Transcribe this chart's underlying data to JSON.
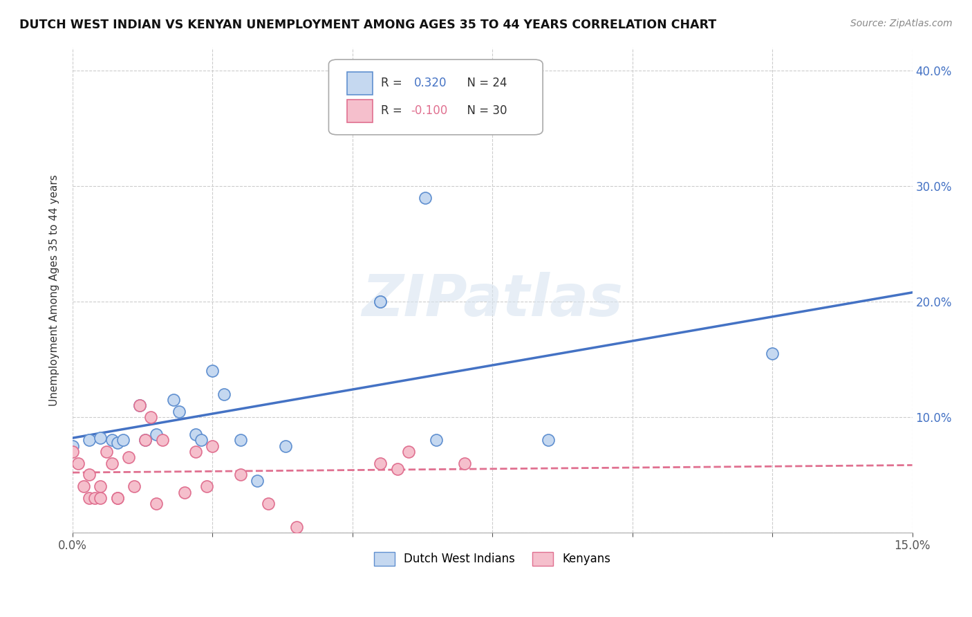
{
  "title": "DUTCH WEST INDIAN VS KENYAN UNEMPLOYMENT AMONG AGES 35 TO 44 YEARS CORRELATION CHART",
  "source": "Source: ZipAtlas.com",
  "ylabel": "Unemployment Among Ages 35 to 44 years",
  "watermark": "ZIPatlas",
  "xlim": [
    0,
    0.15
  ],
  "ylim": [
    0,
    0.42
  ],
  "xticks": [
    0.0,
    0.025,
    0.05,
    0.075,
    0.1,
    0.125,
    0.15
  ],
  "xtick_labels_show": [
    "0.0%",
    "",
    "",
    "",
    "",
    "",
    "15.0%"
  ],
  "yticks_right": [
    0.1,
    0.2,
    0.3,
    0.4
  ],
  "ytick_labels_right": [
    "10.0%",
    "20.0%",
    "30.0%",
    "40.0%"
  ],
  "legend1_label": "Dutch West Indians",
  "legend2_label": "Kenyans",
  "R1": 0.32,
  "N1": 24,
  "R2": -0.1,
  "N2": 30,
  "color1": "#c5d8f0",
  "color2": "#f5bfcc",
  "edge_color1": "#6090d0",
  "edge_color2": "#e07090",
  "line_color1": "#4472c4",
  "line_color2": "#e07090",
  "background_color": "#ffffff",
  "grid_color": "#cccccc",
  "dutch_x": [
    0.0,
    0.003,
    0.005,
    0.007,
    0.008,
    0.009,
    0.012,
    0.013,
    0.015,
    0.018,
    0.019,
    0.022,
    0.023,
    0.025,
    0.027,
    0.03,
    0.033,
    0.038,
    0.055,
    0.055,
    0.063,
    0.065,
    0.085,
    0.125
  ],
  "dutch_y": [
    0.075,
    0.08,
    0.082,
    0.08,
    0.078,
    0.08,
    0.11,
    0.08,
    0.085,
    0.115,
    0.105,
    0.085,
    0.08,
    0.14,
    0.12,
    0.08,
    0.045,
    0.075,
    0.2,
    0.2,
    0.29,
    0.08,
    0.08,
    0.155
  ],
  "kenyan_x": [
    0.0,
    0.001,
    0.002,
    0.003,
    0.003,
    0.004,
    0.005,
    0.005,
    0.006,
    0.007,
    0.008,
    0.008,
    0.01,
    0.011,
    0.012,
    0.013,
    0.014,
    0.015,
    0.016,
    0.02,
    0.022,
    0.024,
    0.025,
    0.03,
    0.035,
    0.04,
    0.055,
    0.058,
    0.06,
    0.07
  ],
  "kenyan_y": [
    0.07,
    0.06,
    0.04,
    0.03,
    0.05,
    0.03,
    0.04,
    0.03,
    0.07,
    0.06,
    0.03,
    0.03,
    0.065,
    0.04,
    0.11,
    0.08,
    0.1,
    0.025,
    0.08,
    0.035,
    0.07,
    0.04,
    0.075,
    0.05,
    0.025,
    0.005,
    0.06,
    0.055,
    0.07,
    0.06
  ]
}
